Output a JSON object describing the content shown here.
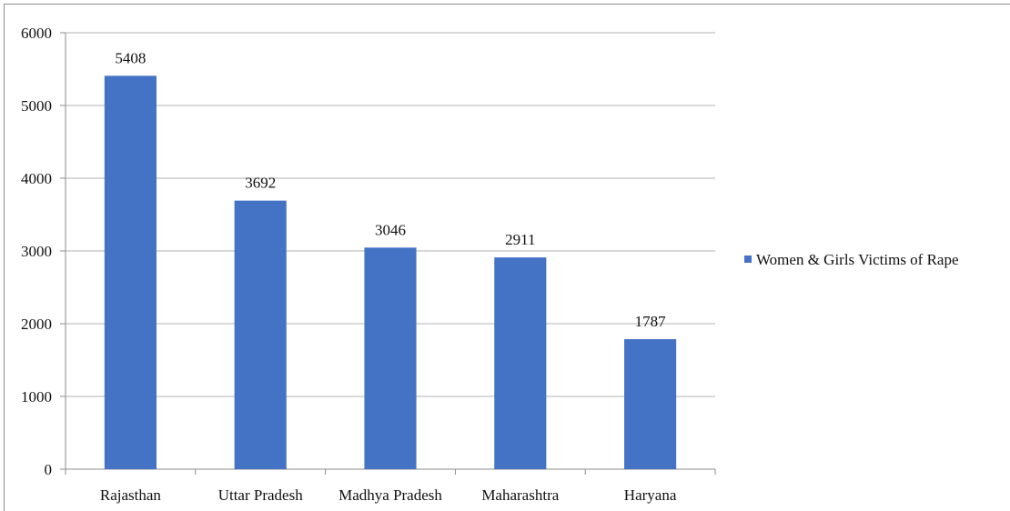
{
  "chart_data": {
    "type": "bar",
    "categories": [
      "Rajasthan",
      "Uttar Pradesh",
      "Madhya Pradesh",
      "Maharashtra",
      "Haryana"
    ],
    "series": [
      {
        "name": "Women & Girls Victims of Rape",
        "values": [
          5408,
          3692,
          3046,
          2911,
          1787
        ],
        "color": "#4472c4"
      }
    ],
    "ylim": [
      0,
      6000
    ],
    "yticks": [
      0,
      1000,
      2000,
      3000,
      4000,
      5000,
      6000
    ],
    "grid": true,
    "legend_position": "right",
    "data_labels": true
  }
}
